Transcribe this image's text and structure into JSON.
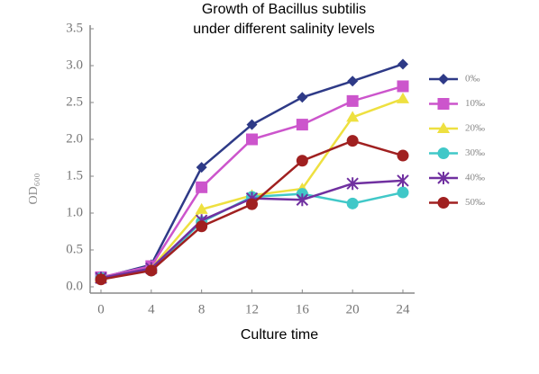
{
  "chart_data": {
    "type": "line",
    "title": [
      "Growth of Bacillus subtilis",
      "under different salinity levels"
    ],
    "x_label": "Culture time",
    "y_label": "OD₆₀₀",
    "x": [
      0,
      4,
      8,
      12,
      16,
      20,
      24
    ],
    "xlim": [
      0,
      24
    ],
    "xticks": [
      0,
      4,
      8,
      12,
      16,
      20,
      24
    ],
    "ylim": [
      0,
      3.5
    ],
    "yticks": [
      {
        "value": 0,
        "label": "0.0"
      },
      0.5,
      {
        "value": 1,
        "label": "1.0"
      },
      1.5,
      {
        "value": 2,
        "label": "2.0"
      },
      2.5,
      {
        "value": 3,
        "label": "3.0"
      },
      3.5
    ],
    "grid": false,
    "legend": "right",
    "series": [
      {
        "name": "0‰",
        "color": "#2e3a87",
        "marker": "diamond",
        "values": [
          0.12,
          0.3,
          1.62,
          2.2,
          2.57,
          2.79,
          3.02
        ]
      },
      {
        "name": "10‰",
        "color": "#cc55cc",
        "marker": "square",
        "values": [
          0.13,
          0.28,
          1.35,
          2.0,
          2.2,
          2.52,
          2.72
        ]
      },
      {
        "name": "20‰",
        "color": "#eee040",
        "marker": "triangle",
        "values": [
          0.12,
          0.25,
          1.05,
          1.24,
          1.33,
          2.3,
          2.55
        ]
      },
      {
        "name": "30‰",
        "color": "#40c8c8",
        "marker": "circle",
        "values": [
          0.12,
          0.22,
          0.88,
          1.22,
          1.26,
          1.13,
          1.28
        ]
      },
      {
        "name": "40‰",
        "color": "#7030a0",
        "marker": "x",
        "values": [
          0.12,
          0.25,
          0.9,
          1.2,
          1.18,
          1.4,
          1.44
        ]
      },
      {
        "name": "50‰",
        "color": "#a02020",
        "marker": "circle",
        "values": [
          0.1,
          0.22,
          0.82,
          1.12,
          1.71,
          1.98,
          1.78
        ]
      }
    ]
  }
}
